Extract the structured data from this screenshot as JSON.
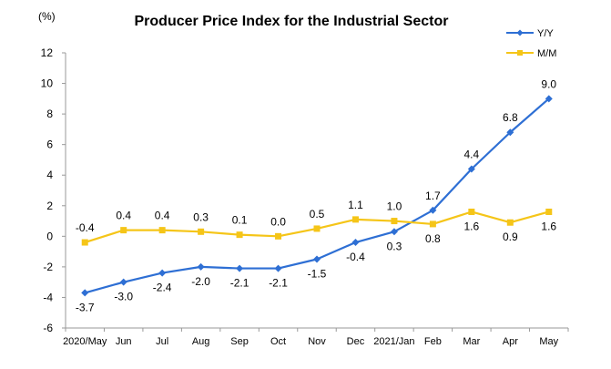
{
  "chart_data": {
    "type": "line",
    "title": "Producer Price Index for the Industrial Sector",
    "unit_label": "(%)",
    "xlabel": "",
    "ylabel": "",
    "categories": [
      "2020/May",
      "Jun",
      "Jul",
      "Aug",
      "Sep",
      "Oct",
      "Nov",
      "Dec",
      "2021/Jan",
      "Feb",
      "Mar",
      "Apr",
      "May"
    ],
    "ylim": [
      -6,
      12
    ],
    "yticks": [
      -6,
      -4,
      -2,
      0,
      2,
      4,
      6,
      8,
      10,
      12
    ],
    "grid": false,
    "legend_position": "top-right",
    "series": [
      {
        "name": "Y/Y",
        "color": "#2E6FD4",
        "marker": "diamond",
        "values": [
          -3.7,
          -3.0,
          -2.4,
          -2.0,
          -2.1,
          -2.1,
          -1.5,
          -0.4,
          0.3,
          1.7,
          4.4,
          6.8,
          9.0
        ],
        "labels": [
          "-3.7",
          "-3.0",
          "-2.4",
          "-2.0",
          "-2.1",
          "-2.1",
          "-1.5",
          "-0.4",
          "0.3",
          "1.7",
          "4.4",
          "6.8",
          "9.0"
        ],
        "label_side": [
          "below",
          "below",
          "below",
          "below",
          "below",
          "below",
          "below",
          "below",
          "below",
          "above",
          "above",
          "above",
          "above"
        ]
      },
      {
        "name": "M/M",
        "color": "#F5C518",
        "marker": "square",
        "values": [
          -0.4,
          0.4,
          0.4,
          0.3,
          0.1,
          0.0,
          0.5,
          1.1,
          1.0,
          0.8,
          1.6,
          0.9,
          1.6
        ],
        "labels": [
          "-0.4",
          "0.4",
          "0.4",
          "0.3",
          "0.1",
          "0.0",
          "0.5",
          "1.1",
          "1.0",
          "0.8",
          "1.6",
          "0.9",
          "1.6"
        ],
        "label_side": [
          "above",
          "above",
          "above",
          "above",
          "above",
          "above",
          "above",
          "above",
          "above",
          "below",
          "below",
          "below",
          "below"
        ]
      }
    ]
  }
}
